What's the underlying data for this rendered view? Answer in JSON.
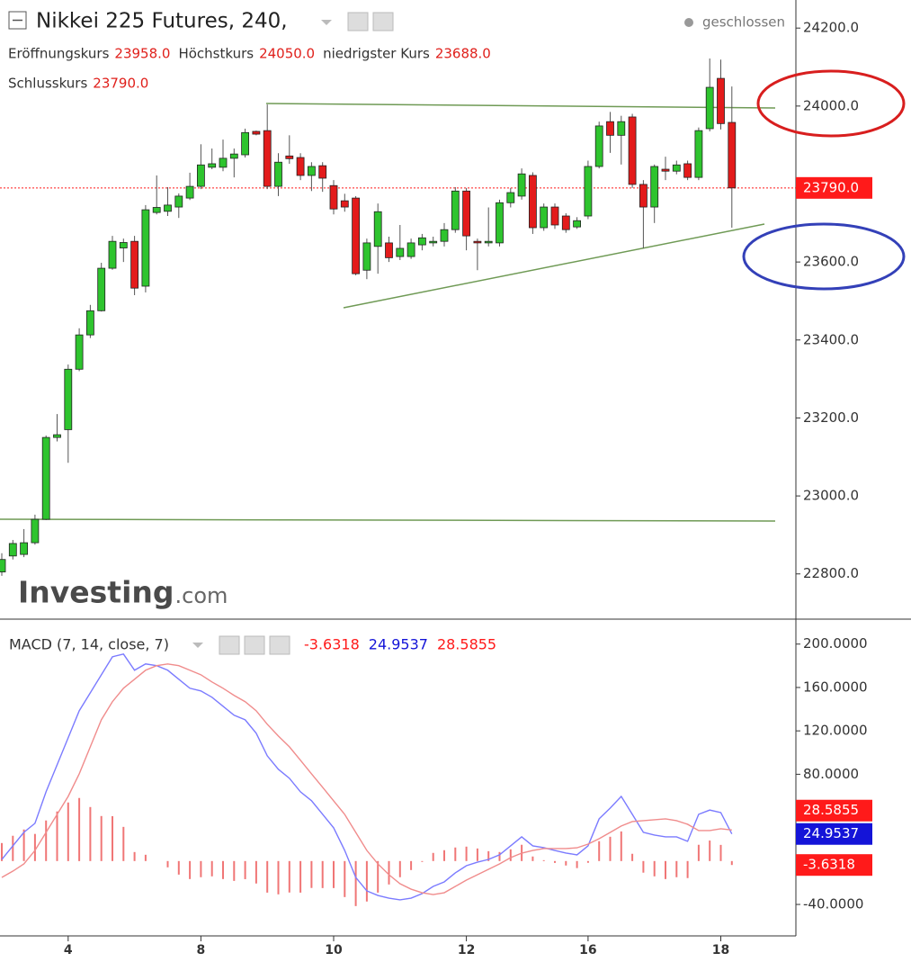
{
  "chart_data": [
    {
      "type": "candlestick",
      "title": "Nikkei 225 Futures, 240,",
      "status": "geschlossen",
      "legend": [
        {
          "label": "Eröffnungskurs",
          "value": "23958.0"
        },
        {
          "label": "Höchstkurs",
          "value": "24050.0"
        },
        {
          "label": "niedrigster Kurs",
          "value": "23688.0"
        },
        {
          "label": "Schlusskurs",
          "value": "23790.0"
        }
      ],
      "open": [
        22805,
        22846,
        22850,
        22880,
        22940,
        23150,
        23170,
        23325,
        23413,
        23475,
        23584,
        23636,
        23653,
        23538,
        23727,
        23730,
        23741,
        23764,
        23794,
        23843,
        23843,
        23866,
        23875,
        23935,
        23937,
        23794,
        23872,
        23868,
        23822,
        23847,
        23796,
        23757,
        23764,
        23579,
        23640,
        23649,
        23614,
        23614,
        23644,
        23649,
        23653,
        23683,
        23782,
        23653,
        23649,
        23649,
        23752,
        23769,
        23822,
        23688,
        23741,
        23718,
        23690,
        23718,
        23845,
        23960,
        23925,
        23972,
        23799,
        23741,
        23838,
        23833,
        23852,
        23817,
        23942,
        24071,
        23958
      ],
      "high": [
        22853,
        22887,
        22915,
        22952,
        23155,
        23210,
        23337,
        23430,
        23490,
        23598,
        23667,
        23660,
        23667,
        23746,
        23822,
        23792,
        23776,
        23829,
        23902,
        23891,
        23914,
        23891,
        23942,
        23937,
        24004,
        23879,
        23925,
        23879,
        23856,
        23856,
        23810,
        23775,
        23769,
        23660,
        23750,
        23665,
        23695,
        23660,
        23672,
        23665,
        23700,
        23792,
        23790,
        23660,
        23740,
        23760,
        23790,
        23840,
        23830,
        23750,
        23750,
        23725,
        23715,
        23860,
        23960,
        23985,
        23975,
        23980,
        23810,
        23850,
        23870,
        23860,
        23860,
        23945,
        24122,
        24119,
        24050
      ],
      "low": [
        22795,
        22837,
        22843,
        22875,
        22938,
        23140,
        23085,
        23320,
        23405,
        23473,
        23580,
        23600,
        23515,
        23522,
        23722,
        23718,
        23713,
        23759,
        23787,
        23838,
        23833,
        23817,
        23868,
        23925,
        23787,
        23769,
        23852,
        23810,
        23782,
        23780,
        23722,
        23729,
        23566,
        23556,
        23570,
        23600,
        23605,
        23608,
        23630,
        23640,
        23640,
        23675,
        23630,
        23579,
        23640,
        23640,
        23740,
        23760,
        23672,
        23680,
        23685,
        23675,
        23685,
        23710,
        23840,
        23880,
        23850,
        23790,
        23635,
        23700,
        23810,
        23825,
        23810,
        23810,
        23935,
        23940,
        23688
      ],
      "close": [
        22837,
        22878,
        22880,
        22940,
        23150,
        23157,
        23325,
        23413,
        23475,
        23584,
        23653,
        23650,
        23533,
        23734,
        23740,
        23746,
        23769,
        23794,
        23849,
        23852,
        23866,
        23877,
        23932,
        23928,
        23794,
        23856,
        23865,
        23822,
        23845,
        23815,
        23736,
        23741,
        23570,
        23649,
        23729,
        23611,
        23635,
        23649,
        23662,
        23653,
        23683,
        23782,
        23667,
        23649,
        23653,
        23752,
        23778,
        23826,
        23688,
        23741,
        23695,
        23683,
        23706,
        23845,
        23949,
        23925,
        23960,
        23799,
        23741,
        23845,
        23833,
        23849,
        23817,
        23937,
        24048,
        23955,
        23790
      ],
      "up_color": "#2ec42e",
      "down_color": "#e31b1b",
      "last_price_color": "#ff1a1a",
      "ylim": [
        22684,
        24272
      ],
      "yticks": [
        {
          "value": 24200,
          "label": "24200.0"
        },
        {
          "value": 24000,
          "label": "24000.0"
        },
        {
          "value": 23600,
          "label": "23600.0"
        },
        {
          "value": 23400,
          "label": "23400.0"
        },
        {
          "value": 23200,
          "label": "23200.0"
        },
        {
          "value": 23000,
          "label": "23000.0"
        },
        {
          "value": 22800,
          "label": "22800.0"
        }
      ],
      "watermark": [
        "Investing",
        ".com"
      ]
    },
    {
      "type": "line",
      "title": "MACD (7, 14, close, 7)",
      "categories": [
        null,
        null,
        null,
        null,
        null,
        null,
        "4",
        null,
        null,
        null,
        null,
        null,
        null,
        null,
        null,
        null,
        null,
        null,
        "8",
        null,
        null,
        null,
        null,
        null,
        null,
        null,
        null,
        null,
        null,
        null,
        "10",
        null,
        null,
        null,
        null,
        null,
        null,
        null,
        null,
        null,
        null,
        null,
        "12",
        null,
        null,
        null,
        null,
        null,
        null,
        null,
        null,
        null,
        null,
        "16",
        null,
        null,
        null,
        null,
        null,
        null,
        null,
        null,
        null,
        null,
        null,
        "18",
        null
      ],
      "series": [
        {
          "type": "bar",
          "color": "#f07676",
          "label_color": "#ff1a1a",
          "values": [
            16.6,
            23.3,
            29.1,
            25,
            37.4,
            45.7,
            54,
            58.1,
            49.8,
            41.5,
            41.4,
            31.5,
            8.3,
            5.8,
            0,
            -5.8,
            -12.5,
            -16.6,
            -14.9,
            -14.1,
            -16.6,
            -18.3,
            -16.7,
            -20.7,
            -29.1,
            -30.7,
            -29,
            -29.1,
            -24.8,
            -24.9,
            -24.9,
            -33.2,
            -41.5,
            -37.3,
            -29.1,
            -21.6,
            -14.9,
            -8.3,
            -0.8,
            7.5,
            10,
            12.5,
            13.3,
            11.6,
            9.1,
            8.3,
            10.8,
            15,
            4.2,
            0.8,
            -1.7,
            -4.1,
            -6.5,
            -1.6,
            18.3,
            22.4,
            27.3,
            6.7,
            -10.7,
            -14.1,
            -16.6,
            -14.9,
            -15.7,
            15,
            18.9,
            14.9,
            -3.6318
          ],
          "value_labels": [
            null,
            null,
            null,
            null,
            null,
            null,
            null,
            null,
            null,
            null,
            null,
            null,
            null,
            null,
            null,
            null,
            null,
            null,
            null,
            null,
            null,
            null,
            null,
            null,
            null,
            null,
            null,
            null,
            null,
            null,
            null,
            null,
            null,
            null,
            null,
            null,
            null,
            null,
            null,
            null,
            null,
            null,
            null,
            null,
            null,
            null,
            null,
            null,
            null,
            null,
            null,
            null,
            null,
            null,
            null,
            null,
            null,
            null,
            null,
            null,
            null,
            null,
            null,
            null,
            null,
            null,
            "-3.6318"
          ]
        },
        {
          "type": "line",
          "color": "#7b7bff",
          "label_color": "#1414d8",
          "values": [
            1.5,
            14,
            26.5,
            34.8,
            63.8,
            88.7,
            113.6,
            138.5,
            155.1,
            171.7,
            188.3,
            190.8,
            175.9,
            181.7,
            180.1,
            175.9,
            167.6,
            159.3,
            156.8,
            151,
            142.7,
            134.4,
            130.2,
            117.8,
            97,
            84.6,
            76.3,
            63.8,
            55.6,
            43.1,
            30.6,
            9.8,
            -15.1,
            -27.5,
            -31.7,
            -34.2,
            -35.8,
            -34.2,
            -30,
            -23.4,
            -19.2,
            -10.9,
            -4.3,
            -1,
            1.5,
            5.7,
            14,
            22.3,
            14,
            12.3,
            9.8,
            7.4,
            5.7,
            14,
            38.9,
            48.8,
            59.6,
            43.1,
            26.5,
            24,
            22.3,
            22.3,
            18.2,
            43.1,
            47,
            44.7,
            24.9537
          ],
          "value_labels": [
            null,
            null,
            null,
            null,
            null,
            null,
            null,
            null,
            null,
            null,
            null,
            null,
            null,
            null,
            null,
            null,
            null,
            null,
            null,
            null,
            null,
            null,
            null,
            null,
            null,
            null,
            null,
            null,
            null,
            null,
            null,
            null,
            null,
            null,
            null,
            null,
            null,
            null,
            null,
            null,
            null,
            null,
            null,
            null,
            null,
            null,
            null,
            null,
            null,
            null,
            null,
            null,
            null,
            null,
            null,
            null,
            null,
            null,
            null,
            null,
            null,
            null,
            null,
            null,
            null,
            null,
            "24.9537"
          ]
        },
        {
          "type": "line",
          "color": "#f08c8c",
          "label_color": "#ff1a1a",
          "values": [
            -15.1,
            -9.3,
            -2.6,
            9.8,
            26.4,
            43,
            59.6,
            80.4,
            105.3,
            130.2,
            146.9,
            159.3,
            167.6,
            175.9,
            180.1,
            181.7,
            180.1,
            175.9,
            171.7,
            165.1,
            159.3,
            152.7,
            146.9,
            138.5,
            126.1,
            115.3,
            105.3,
            92.9,
            80.4,
            68,
            55.5,
            43,
            26.4,
            9.8,
            -2.6,
            -12.6,
            -20.9,
            -25.9,
            -29.2,
            -30.9,
            -29.2,
            -23.4,
            -17.6,
            -12.6,
            -7.6,
            -2.6,
            3.2,
            7.3,
            9.8,
            11.5,
            11.5,
            11.5,
            12.2,
            15.6,
            20.6,
            26.4,
            32.3,
            36.4,
            37.2,
            38.1,
            38.9,
            37.2,
            33.9,
            28.1,
            28.1,
            29.8,
            28.5855
          ],
          "value_labels": [
            null,
            null,
            null,
            null,
            null,
            null,
            null,
            null,
            null,
            null,
            null,
            null,
            null,
            null,
            null,
            null,
            null,
            null,
            null,
            null,
            null,
            null,
            null,
            null,
            null,
            null,
            null,
            null,
            null,
            null,
            null,
            null,
            null,
            null,
            null,
            null,
            null,
            null,
            null,
            null,
            null,
            null,
            null,
            null,
            null,
            null,
            null,
            null,
            null,
            null,
            null,
            null,
            null,
            null,
            null,
            null,
            null,
            null,
            null,
            null,
            null,
            null,
            null,
            null,
            null,
            null,
            "28.5855"
          ]
        }
      ],
      "ylim": [
        -69,
        223
      ],
      "yticks": [
        {
          "value": 200,
          "label": "200.0000"
        },
        {
          "value": 160,
          "label": "160.0000"
        },
        {
          "value": 120,
          "label": "120.0000"
        },
        {
          "value": 80,
          "label": "80.0000"
        },
        {
          "value": -40,
          "label": "-40.0000"
        }
      ]
    }
  ]
}
